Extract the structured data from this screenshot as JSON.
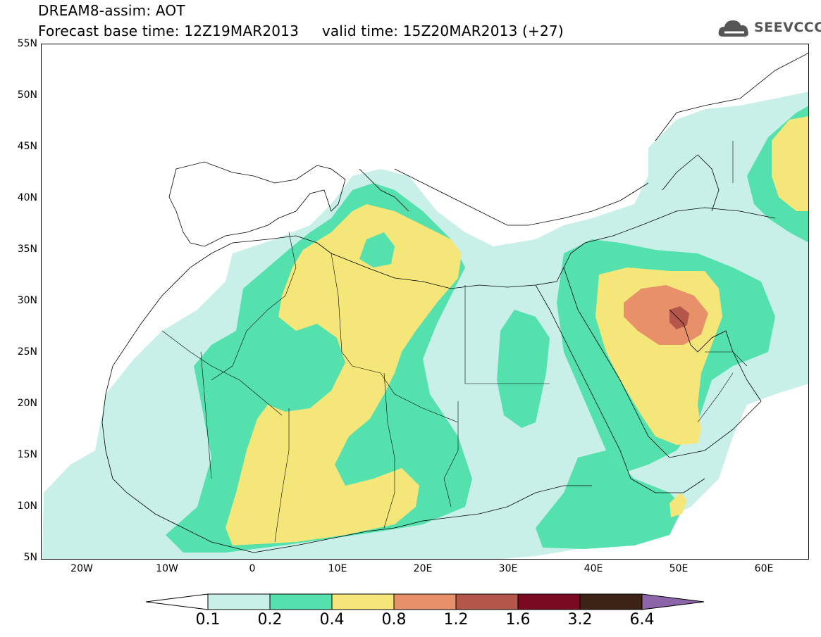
{
  "title": {
    "line1": "DREAM8-assim: AOT",
    "line2": "Forecast base time: 12Z19MAR2013     valid time: 15Z20MAR2013 (+27)"
  },
  "logo": {
    "text": "SEEVCCC",
    "icon": "cloud-icon"
  },
  "map": {
    "lat_labels": [
      "55N",
      "50N",
      "45N",
      "40N",
      "35N",
      "30N",
      "25N",
      "20N",
      "15N",
      "10N",
      "5N"
    ],
    "lon_labels": [
      "20W",
      "10W",
      "0",
      "10E",
      "20E",
      "30E",
      "40E",
      "50E",
      "60E"
    ],
    "lat_range": [
      5,
      55
    ],
    "lon_range": [
      -25,
      65
    ],
    "variable": "AOT"
  },
  "colorbar": {
    "levels": [
      "0.1",
      "0.2",
      "0.4",
      "0.8",
      "1.2",
      "1.6",
      "3.2",
      "6.4"
    ],
    "colors": [
      "#ffffff",
      "#c8f0e8",
      "#55e1ae",
      "#f5e67a",
      "#e8906a",
      "#b5564a",
      "#7a0a22",
      "#3d2315",
      "#8c64a8"
    ]
  },
  "colors": {
    "land_none": "#ffffff",
    "aot_01": "#c8f0e8",
    "aot_02": "#55e1ae",
    "aot_04": "#f5e67a",
    "aot_08": "#e8906a",
    "aot_12": "#b5564a"
  }
}
